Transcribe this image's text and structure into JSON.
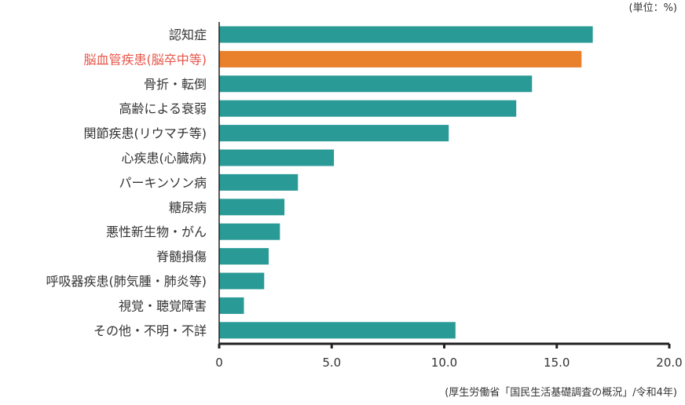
{
  "chart_data": {
    "type": "bar",
    "orientation": "horizontal",
    "unit_label": "(単位：%)",
    "source_note": "(厚生労働省「国民生活基礎調査の概況」/令和4年)",
    "categories": [
      "認知症",
      "脳血管疾患(脳卒中等)",
      "骨折・転倒",
      "高齢による衰弱",
      "関節疾患(リウマチ等)",
      "心疾患(心臓病)",
      "パーキンソン病",
      "糖尿病",
      "悪性新生物・がん",
      "脊髄損傷",
      "呼吸器疾患(肺気腫・肺炎等)",
      "視覚・聴覚障害",
      "その他・不明・不詳"
    ],
    "values": [
      16.6,
      16.1,
      13.9,
      13.2,
      10.2,
      5.1,
      3.5,
      2.9,
      2.7,
      2.2,
      2.0,
      1.1,
      10.5
    ],
    "highlight_index": 1,
    "xlim": [
      0,
      20
    ],
    "xticks": [
      "0",
      "5.0",
      "10.0",
      "15.0",
      "20.0"
    ],
    "grid": false,
    "colors": {
      "bar": "#2a9a96",
      "highlight_bar": "#e8802c",
      "highlight_label": "#e8564a",
      "axis": "#222222",
      "text": "#333333"
    }
  }
}
